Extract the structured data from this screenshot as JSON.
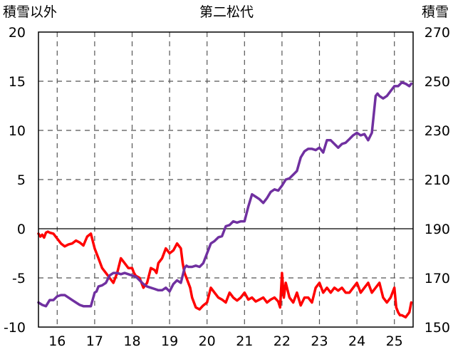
{
  "chart_data": {
    "type": "line",
    "title": "第二松代",
    "ylabel_left": "積雪以外",
    "ylabel_right": "積雪",
    "x_ticks": [
      "16",
      "17",
      "18",
      "19",
      "20",
      "21",
      "22",
      "23",
      "24",
      "25"
    ],
    "y_left_ticks": [
      "20",
      "15",
      "10",
      "5",
      "0",
      "-5",
      "-10"
    ],
    "y_right_ticks": [
      "270",
      "250",
      "230",
      "210",
      "190",
      "170",
      "150"
    ],
    "ylim_left": [
      -10,
      20
    ],
    "ylim_right": [
      150,
      270
    ],
    "xlim": [
      15.5,
      25.5
    ],
    "grid": true,
    "colors": {
      "red": "#ff0000",
      "purple": "#7030a0"
    },
    "series": [
      {
        "axis": "left",
        "color": "#ff0000",
        "x": [
          15.5,
          15.55,
          15.6,
          15.65,
          15.7,
          15.75,
          15.8,
          15.9,
          16.0,
          16.1,
          16.2,
          16.3,
          16.4,
          16.5,
          16.6,
          16.7,
          16.8,
          16.9,
          17.0,
          17.1,
          17.2,
          17.3,
          17.4,
          17.5,
          17.6,
          17.7,
          17.8,
          17.9,
          18.0,
          18.05,
          18.1,
          18.2,
          18.3,
          18.4,
          18.5,
          18.6,
          18.65,
          18.7,
          18.8,
          18.9,
          19.0,
          19.1,
          19.2,
          19.3,
          19.35,
          19.4,
          19.45,
          19.5,
          19.55,
          19.6,
          19.7,
          19.8,
          19.9,
          20.0,
          20.1,
          20.2,
          20.3,
          20.4,
          20.5,
          20.6,
          20.7,
          20.8,
          20.9,
          21.0,
          21.1,
          21.2,
          21.3,
          21.4,
          21.5,
          21.6,
          21.7,
          21.8,
          21.9,
          21.95,
          22.0,
          22.05,
          22.1,
          22.2,
          22.3,
          22.4,
          22.5,
          22.6,
          22.7,
          22.8,
          22.9,
          23.0,
          23.1,
          23.2,
          23.3,
          23.4,
          23.5,
          23.6,
          23.7,
          23.8,
          23.9,
          24.0,
          24.1,
          24.2,
          24.3,
          24.4,
          24.5,
          24.6,
          24.7,
          24.8,
          24.9,
          25.0,
          25.05,
          25.1,
          25.15,
          25.2,
          25.3,
          25.4,
          25.45
        ],
        "y": [
          -0.5,
          -0.8,
          -0.6,
          -0.9,
          -0.4,
          -0.3,
          -0.4,
          -0.5,
          -1.0,
          -1.5,
          -1.8,
          -1.6,
          -1.5,
          -1.2,
          -1.4,
          -1.7,
          -0.8,
          -0.5,
          -2.0,
          -3.0,
          -4.0,
          -4.5,
          -5.0,
          -5.5,
          -4.5,
          -3.0,
          -3.5,
          -4.0,
          -4.0,
          -4.5,
          -4.8,
          -5.0,
          -6.0,
          -5.5,
          -4.0,
          -4.2,
          -4.5,
          -3.5,
          -3.0,
          -2.0,
          -2.5,
          -2.2,
          -1.5,
          -2.0,
          -3.5,
          -4.5,
          -5.0,
          -5.5,
          -6.0,
          -7.0,
          -8.0,
          -8.2,
          -7.8,
          -7.5,
          -6.0,
          -6.5,
          -7.0,
          -7.2,
          -7.5,
          -6.5,
          -7.0,
          -7.3,
          -7.0,
          -6.5,
          -7.2,
          -7.0,
          -7.4,
          -7.2,
          -7.0,
          -7.5,
          -7.2,
          -7.0,
          -7.4,
          -8.0,
          -4.5,
          -7.0,
          -5.5,
          -7.0,
          -7.5,
          -6.5,
          -7.8,
          -7.0,
          -7.0,
          -7.5,
          -6.0,
          -5.5,
          -6.5,
          -6.0,
          -6.5,
          -6.0,
          -6.3,
          -6.0,
          -6.5,
          -6.5,
          -6.0,
          -5.5,
          -6.5,
          -6.0,
          -5.5,
          -6.5,
          -6.0,
          -5.5,
          -7.0,
          -7.5,
          -7.0,
          -6.0,
          -8.0,
          -8.5,
          -8.8,
          -8.8,
          -9.0,
          -8.5,
          -7.5
        ]
      },
      {
        "axis": "right",
        "color": "#7030a0",
        "x": [
          15.5,
          15.6,
          15.7,
          15.8,
          15.9,
          16.0,
          16.1,
          16.2,
          16.3,
          16.4,
          16.5,
          16.6,
          16.7,
          16.8,
          16.9,
          17.0,
          17.05,
          17.1,
          17.2,
          17.3,
          17.4,
          17.5,
          17.6,
          17.7,
          17.8,
          17.9,
          18.0,
          18.1,
          18.2,
          18.3,
          18.4,
          18.5,
          18.6,
          18.7,
          18.8,
          18.9,
          19.0,
          19.1,
          19.2,
          19.3,
          19.4,
          19.45,
          19.5,
          19.6,
          19.7,
          19.8,
          19.9,
          20.0,
          20.1,
          20.2,
          20.3,
          20.4,
          20.5,
          20.6,
          20.7,
          20.8,
          20.9,
          21.0,
          21.1,
          21.2,
          21.3,
          21.4,
          21.5,
          21.6,
          21.7,
          21.8,
          21.9,
          22.0,
          22.1,
          22.2,
          22.3,
          22.4,
          22.5,
          22.6,
          22.7,
          22.8,
          22.9,
          23.0,
          23.1,
          23.2,
          23.3,
          23.4,
          23.5,
          23.6,
          23.7,
          23.8,
          23.9,
          24.0,
          24.1,
          24.2,
          24.3,
          24.4,
          24.5,
          24.55,
          24.6,
          24.7,
          24.8,
          24.9,
          25.0,
          25.1,
          25.2,
          25.3,
          25.4,
          25.45
        ],
        "y": [
          160.0,
          159.0,
          158.5,
          161.0,
          161.0,
          162.5,
          163.0,
          163.0,
          162.0,
          161.0,
          160.0,
          159.0,
          158.5,
          158.5,
          158.5,
          164.0,
          164.5,
          166.5,
          167.0,
          168.0,
          171.0,
          172.0,
          172.0,
          171.5,
          172.0,
          171.5,
          171.0,
          170.5,
          169.0,
          167.5,
          166.5,
          166.0,
          165.5,
          165.0,
          165.0,
          166.0,
          164.5,
          167.5,
          169.0,
          168.0,
          174.0,
          175.0,
          174.5,
          174.5,
          175.0,
          174.5,
          176.0,
          180.0,
          184.0,
          185.0,
          186.5,
          187.0,
          191.0,
          191.5,
          193.0,
          192.5,
          193.0,
          193.0,
          199.0,
          204.0,
          203.0,
          202.0,
          200.5,
          202.5,
          205.0,
          206.0,
          205.5,
          207.5,
          210.0,
          210.5,
          212.0,
          213.5,
          219.0,
          221.5,
          222.5,
          222.5,
          222.0,
          223.0,
          221.0,
          226.0,
          226.0,
          224.5,
          223.0,
          224.5,
          225.0,
          226.5,
          228.0,
          229.0,
          228.0,
          228.5,
          226.0,
          229.0,
          244.0,
          245.0,
          244.0,
          243.0,
          244.0,
          246.0,
          248.0,
          248.0,
          249.5,
          249.0,
          248.0,
          249.0
        ]
      }
    ]
  }
}
